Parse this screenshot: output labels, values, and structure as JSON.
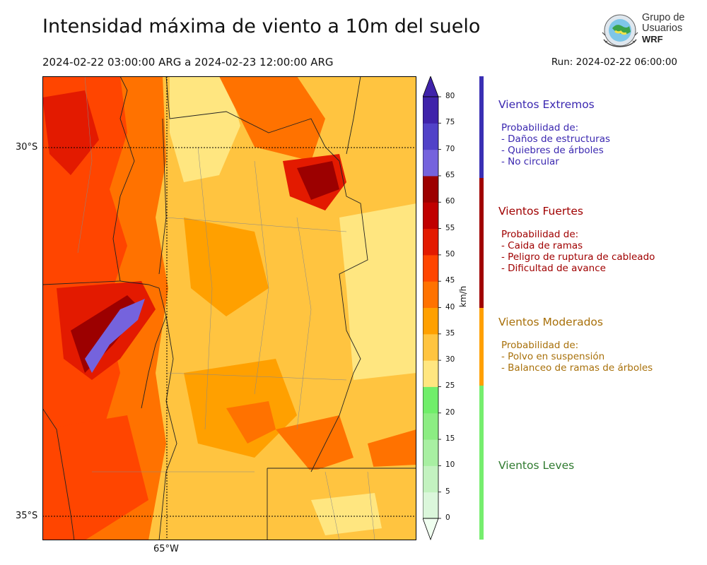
{
  "title": "Intensidad máxima de viento a 10m del suelo",
  "period": "2024-02-22 03:00:00 ARG  a  2024-02-23 12:00:00 ARG",
  "run": "Run: 2024-02-22 06:00:00",
  "logo": {
    "line1": "Grupo de",
    "line2": "Usuarios",
    "line3": "WRF"
  },
  "map": {
    "lat_labels": [
      "30°S",
      "35°S"
    ],
    "lon_labels": [
      "65°W"
    ]
  },
  "colorbar": {
    "unit": "km/h",
    "ticks": [
      "0",
      "5",
      "10",
      "15",
      "20",
      "25",
      "30",
      "35",
      "40",
      "45",
      "50",
      "55",
      "60",
      "65",
      "70",
      "75",
      "80"
    ],
    "colors": [
      "#f0fff0",
      "#dbf7db",
      "#c3f2c0",
      "#a8efa2",
      "#8ced83",
      "#70ee6a",
      "#ffe680",
      "#ffc440",
      "#ffa000",
      "#ff7200",
      "#ff4500",
      "#e31a00",
      "#c00000",
      "#9c0000",
      "#7563dd",
      "#5142c8",
      "#3f23aa"
    ]
  },
  "legend": [
    {
      "heading": "Vientos Extremos",
      "color": "#3a27b0",
      "bar_color": "#3a2fb4",
      "intro": "Probabilidad de:",
      "items": [
        "- Daños de estructuras",
        "- Quiebres de árboles",
        "- No circular"
      ]
    },
    {
      "heading": "Vientos Fuertes",
      "color": "#a00000",
      "bar_color": "#a00000",
      "intro": "Probabilidad de:",
      "items": [
        "- Caida de ramas",
        "- Peligro de ruptura de cableado",
        "- Dificultad de avance"
      ]
    },
    {
      "heading": "Vientos Moderados",
      "color": "#a8700a",
      "bar_color": "#ffa000",
      "intro": "Probabilidad de:",
      "items": [
        "- Polvo en suspensión",
        "- Balanceo de ramas de árboles"
      ]
    },
    {
      "heading": "Vientos Leves",
      "color": "#2f7a2f",
      "bar_color": "#76ee6e",
      "intro": "",
      "items": []
    }
  ]
}
